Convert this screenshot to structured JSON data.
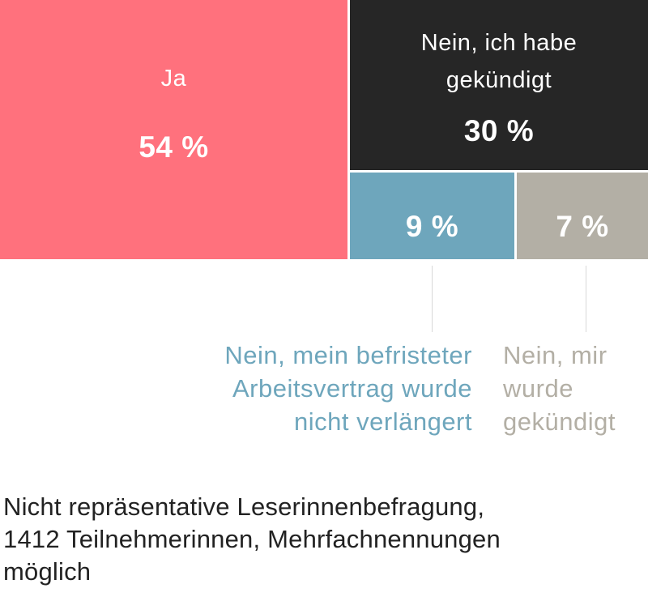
{
  "chart_data": {
    "type": "treemap",
    "title": "",
    "categories": [
      "Ja",
      "Nein, ich habe gekündigt",
      "Nein, mein befristeter Arbeitsvertrag wurde nicht verlängert",
      "Nein, mir wurde gekündigt"
    ],
    "values": [
      54,
      30,
      9,
      7
    ],
    "value_labels": [
      "54 %",
      "30 %",
      "9 %",
      "7 %"
    ],
    "tiles": {
      "ja": {
        "label_lines": [
          "Ja"
        ],
        "value": 54,
        "value_label": "54 %",
        "color": "#ff717d"
      },
      "quit": {
        "label_lines": [
          "Nein, ich habe",
          "gekündigt"
        ],
        "value": 30,
        "value_label": "30 %",
        "color": "#262626"
      },
      "fix": {
        "label_lines": [
          "Nein, mein befristeter",
          "Arbeitsvertrag wurde",
          "nicht verlängert"
        ],
        "value": 9,
        "value_label": "9 %",
        "color": "#6ea6bc"
      },
      "fired": {
        "label_lines": [
          "Nein, mir",
          "wurde",
          "gekündigt"
        ],
        "value": 7,
        "value_label": "7 %",
        "color": "#b3afa5"
      }
    },
    "note_lines": [
      "Nicht repräsentative Leserinnenbefragung,",
      "1412 Teilnehmerinnen, Mehrfachnennungen",
      "möglich"
    ]
  }
}
